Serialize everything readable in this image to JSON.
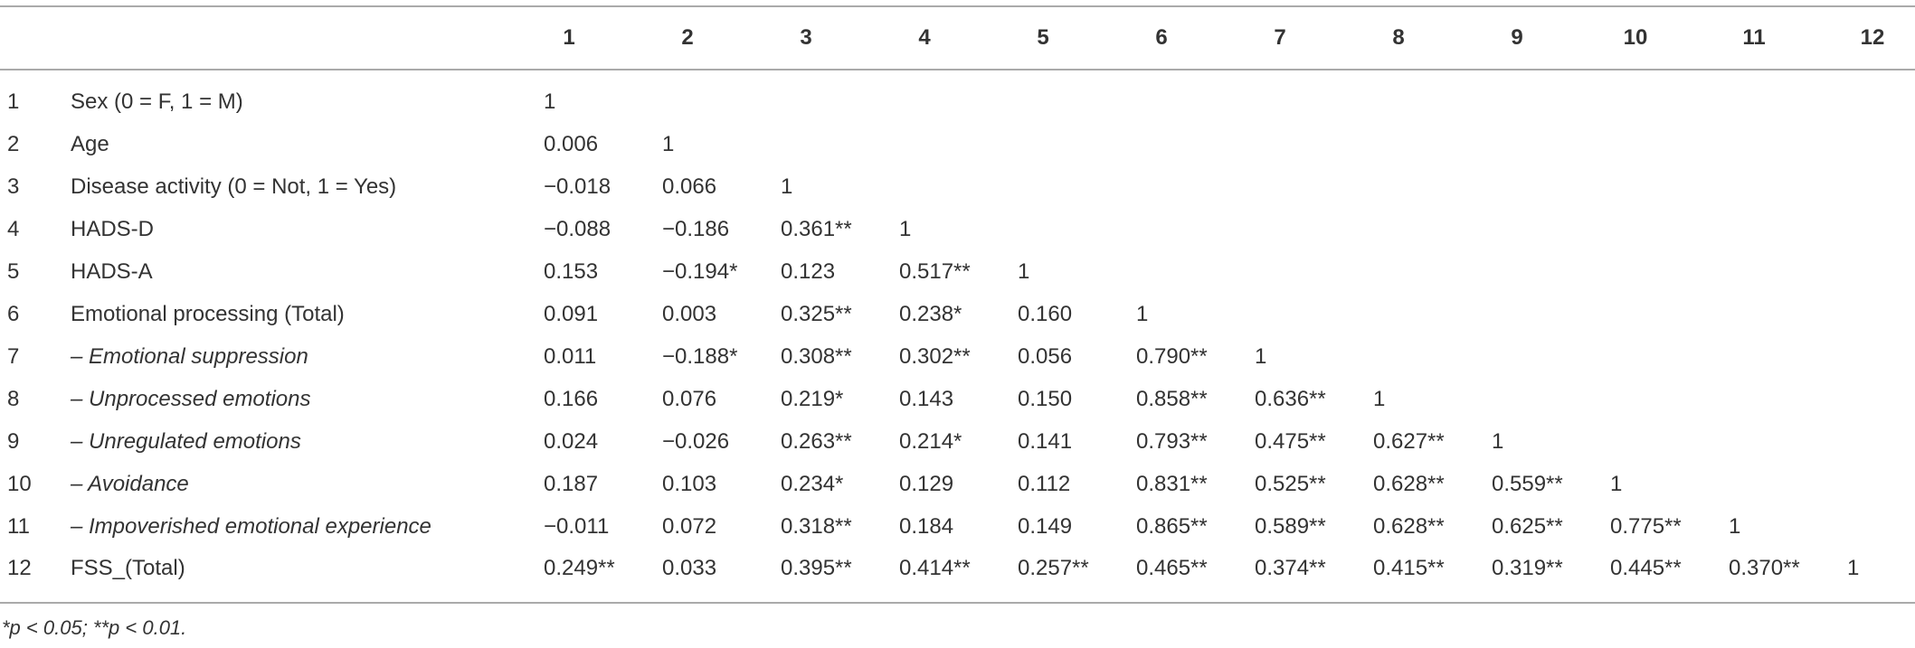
{
  "table": {
    "header": [
      "1",
      "2",
      "3",
      "4",
      "5",
      "6",
      "7",
      "8",
      "9",
      "10",
      "11",
      "12"
    ],
    "rows": [
      {
        "index": "1",
        "label": "Sex (0 = F, 1 = M)",
        "cells": [
          "1"
        ]
      },
      {
        "index": "2",
        "label": "Age",
        "cells": [
          "0.006",
          "1"
        ]
      },
      {
        "index": "3",
        "label": "Disease activity (0 = Not, 1 = Yes)",
        "cells": [
          "−0.018",
          "0.066",
          "1"
        ]
      },
      {
        "index": "4",
        "label": "HADS-D",
        "cells": [
          "−0.088",
          "−0.186",
          "0.361**",
          "1"
        ]
      },
      {
        "index": "5",
        "label": "HADS-A",
        "cells": [
          "0.153",
          "−0.194*",
          "0.123",
          "0.517**",
          "1"
        ]
      },
      {
        "index": "6",
        "label": "Emotional processing (Total)",
        "cells": [
          "0.091",
          "0.003",
          "0.325**",
          "0.238*",
          "0.160",
          "1"
        ]
      },
      {
        "index": "7",
        "label": "– Emotional suppression",
        "cells": [
          "0.011",
          "−0.188*",
          "0.308**",
          "0.302**",
          "0.056",
          "0.790**",
          "1"
        ]
      },
      {
        "index": "8",
        "label": "– Unprocessed emotions",
        "cells": [
          "0.166",
          "0.076",
          "0.219*",
          "0.143",
          "0.150",
          "0.858**",
          "0.636**",
          "1"
        ]
      },
      {
        "index": "9",
        "label": "– Unregulated emotions",
        "cells": [
          "0.024",
          "−0.026",
          "0.263**",
          "0.214*",
          "0.141",
          "0.793**",
          "0.475**",
          "0.627**",
          "1"
        ]
      },
      {
        "index": "10",
        "label": "– Avoidance",
        "cells": [
          "0.187",
          "0.103",
          "0.234*",
          "0.129",
          "0.112",
          "0.831**",
          "0.525**",
          "0.628**",
          "0.559**",
          "1"
        ]
      },
      {
        "index": "11",
        "label": "– Impoverished emotional experience",
        "cells": [
          "−0.011",
          "0.072",
          "0.318**",
          "0.184",
          "0.149",
          "0.865**",
          "0.589**",
          "0.628**",
          "0.625**",
          "0.775**",
          "1"
        ]
      },
      {
        "index": "12",
        "label": "FSS_(Total)",
        "cells": [
          "0.249**",
          "0.033",
          "0.395**",
          "0.414**",
          "0.257**",
          "0.465**",
          "0.374**",
          "0.415**",
          "0.319**",
          "0.445**",
          "0.370**",
          "1"
        ]
      }
    ]
  },
  "footnote": "*p < 0.05; **p < 0.01."
}
